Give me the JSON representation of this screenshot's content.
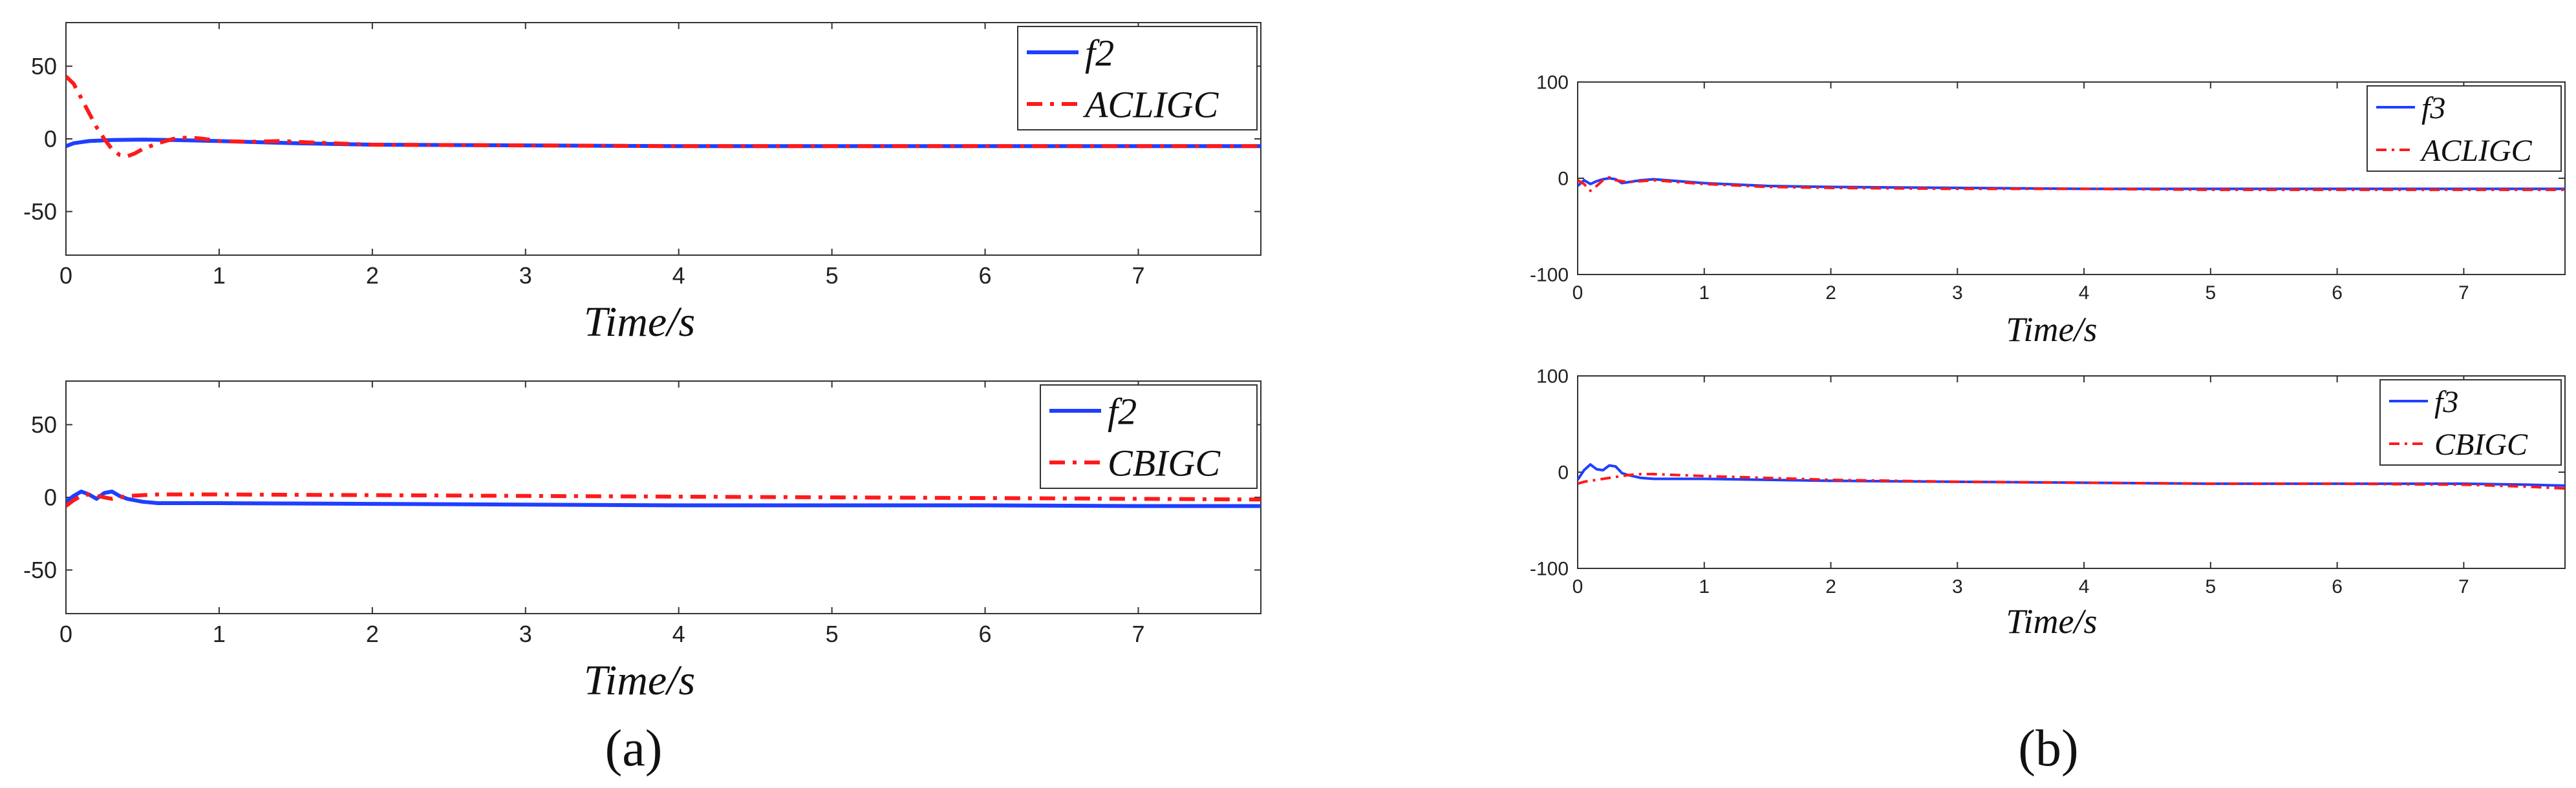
{
  "figure": {
    "panel_labels": [
      "(a)",
      "(b)"
    ]
  },
  "colors": {
    "blue": "#1f3fff",
    "red": "#ff1a1a",
    "axis": "#333333"
  },
  "chart_data": [
    {
      "id": "a-top",
      "type": "line",
      "xlabel": "Time/s",
      "ylabel": "",
      "xlim": [
        0,
        7.8
      ],
      "ylim": [
        -80,
        80
      ],
      "xticks": [
        0,
        1,
        2,
        3,
        4,
        5,
        6,
        7
      ],
      "yticks": [
        50,
        0,
        -50
      ],
      "legend_position": "top-right",
      "series": [
        {
          "name": "f2",
          "color": "#1f3fff",
          "style": "solid",
          "x": [
            0,
            0.05,
            0.15,
            0.3,
            0.5,
            0.7,
            1.0,
            1.5,
            2.0,
            3.0,
            4.0,
            5.0,
            6.0,
            7.0,
            7.8
          ],
          "y": [
            -5,
            -3,
            -1.5,
            -0.8,
            -0.5,
            -0.8,
            -1.5,
            -3,
            -4,
            -4.5,
            -5,
            -5,
            -5,
            -5,
            -5
          ]
        },
        {
          "name": "ACLIGC",
          "color": "#ff1a1a",
          "style": "dashdot",
          "x": [
            0,
            0.05,
            0.1,
            0.15,
            0.2,
            0.25,
            0.3,
            0.35,
            0.4,
            0.45,
            0.5,
            0.6,
            0.7,
            0.8,
            0.9,
            1.0,
            1.2,
            1.4,
            1.6,
            2.0,
            3.0,
            4.0,
            5.0,
            6.0,
            7.0,
            7.8
          ],
          "y": [
            43,
            38,
            28,
            18,
            8,
            0,
            -7,
            -11,
            -12,
            -10,
            -7,
            -3,
            0,
            1,
            0,
            -1.5,
            -2,
            -1.5,
            -2.5,
            -4,
            -4.5,
            -5,
            -5,
            -5,
            -5,
            -5
          ]
        }
      ]
    },
    {
      "id": "a-bottom",
      "type": "line",
      "xlabel": "Time/s",
      "ylabel": "",
      "xlim": [
        0,
        7.8
      ],
      "ylim": [
        -80,
        80
      ],
      "xticks": [
        0,
        1,
        2,
        3,
        4,
        5,
        6,
        7
      ],
      "yticks": [
        50,
        0,
        -50
      ],
      "legend_position": "top-right",
      "series": [
        {
          "name": "f2",
          "color": "#1f3fff",
          "style": "solid",
          "x": [
            0,
            0.05,
            0.1,
            0.15,
            0.2,
            0.25,
            0.3,
            0.35,
            0.4,
            0.5,
            0.6,
            0.8,
            1.0,
            2.0,
            3.0,
            4.0,
            5.0,
            6.0,
            7.0,
            7.8
          ],
          "y": [
            -3,
            1,
            4,
            2,
            -1,
            3,
            4,
            1,
            -1,
            -3,
            -4,
            -4,
            -4,
            -4.5,
            -5,
            -5.5,
            -5.5,
            -5.5,
            -6,
            -6
          ]
        },
        {
          "name": "CBIGC",
          "color": "#ff1a1a",
          "style": "dashdot",
          "x": [
            0,
            0.05,
            0.1,
            0.15,
            0.2,
            0.3,
            0.4,
            0.6,
            1.0,
            2.0,
            3.0,
            4.0,
            5.0,
            6.0,
            7.0,
            7.8
          ],
          "y": [
            -6,
            -2,
            1,
            2,
            1,
            -1,
            1,
            2,
            2,
            1.5,
            1,
            0.5,
            0,
            -0.5,
            -1,
            -1.5
          ]
        }
      ]
    },
    {
      "id": "b-top",
      "type": "line",
      "xlabel": "Time/s",
      "ylabel": "",
      "xlim": [
        0,
        7.8
      ],
      "ylim": [
        -100,
        100
      ],
      "xticks": [
        0,
        1,
        2,
        3,
        4,
        5,
        6,
        7
      ],
      "yticks": [
        100,
        0,
        -100
      ],
      "legend_position": "top-right",
      "series": [
        {
          "name": "f3",
          "color": "#1f3fff",
          "style": "solid",
          "x": [
            0,
            0.05,
            0.1,
            0.15,
            0.2,
            0.25,
            0.3,
            0.35,
            0.4,
            0.5,
            0.6,
            0.8,
            1.0,
            1.5,
            2.0,
            3.0,
            4.0,
            5.0,
            6.0,
            7.0,
            7.8
          ],
          "y": [
            -8,
            -2,
            -6,
            -3,
            -1,
            0,
            -1,
            -5,
            -4,
            -2,
            -1,
            -3,
            -5,
            -8,
            -9,
            -10,
            -11,
            -11,
            -11,
            -11,
            -11
          ]
        },
        {
          "name": "ACLIGC",
          "color": "#ff1a1a",
          "style": "dashdot",
          "x": [
            0,
            0.05,
            0.1,
            0.15,
            0.2,
            0.25,
            0.3,
            0.4,
            0.5,
            0.6,
            0.8,
            1.0,
            1.5,
            2.0,
            3.0,
            4.0,
            5.0,
            6.0,
            7.0,
            7.8
          ],
          "y": [
            -2,
            -6,
            -13,
            -8,
            -2,
            1,
            -2,
            -4,
            -3,
            -2,
            -4,
            -6,
            -9,
            -10,
            -11,
            -11,
            -12,
            -12,
            -12,
            -12
          ]
        }
      ]
    },
    {
      "id": "b-bottom",
      "type": "line",
      "xlabel": "Time/s",
      "ylabel": "",
      "xlim": [
        0,
        7.8
      ],
      "ylim": [
        -100,
        100
      ],
      "xticks": [
        0,
        1,
        2,
        3,
        4,
        5,
        6,
        7
      ],
      "yticks": [
        100,
        0,
        -100
      ],
      "legend_position": "top-right",
      "series": [
        {
          "name": "f3",
          "color": "#1f3fff",
          "style": "solid",
          "x": [
            0,
            0.05,
            0.1,
            0.15,
            0.2,
            0.25,
            0.3,
            0.35,
            0.4,
            0.5,
            0.6,
            0.8,
            1.0,
            2.0,
            3.0,
            4.0,
            5.0,
            6.0,
            7.0,
            7.5,
            7.8
          ],
          "y": [
            -8,
            2,
            8,
            3,
            2,
            7,
            6,
            -1,
            -3,
            -6,
            -7,
            -7,
            -7,
            -9,
            -10,
            -11,
            -12,
            -12,
            -12,
            -13,
            -14
          ]
        },
        {
          "name": "CBIGC",
          "color": "#ff1a1a",
          "style": "dashdot",
          "x": [
            0,
            0.05,
            0.1,
            0.2,
            0.3,
            0.4,
            0.5,
            0.6,
            1.0,
            2.0,
            3.0,
            4.0,
            5.0,
            6.0,
            7.0,
            7.5,
            7.8
          ],
          "y": [
            -12,
            -10,
            -9,
            -7,
            -5,
            -3,
            -2,
            -2,
            -4,
            -8,
            -10,
            -11,
            -12,
            -12,
            -13,
            -15,
            -17
          ]
        }
      ]
    }
  ]
}
